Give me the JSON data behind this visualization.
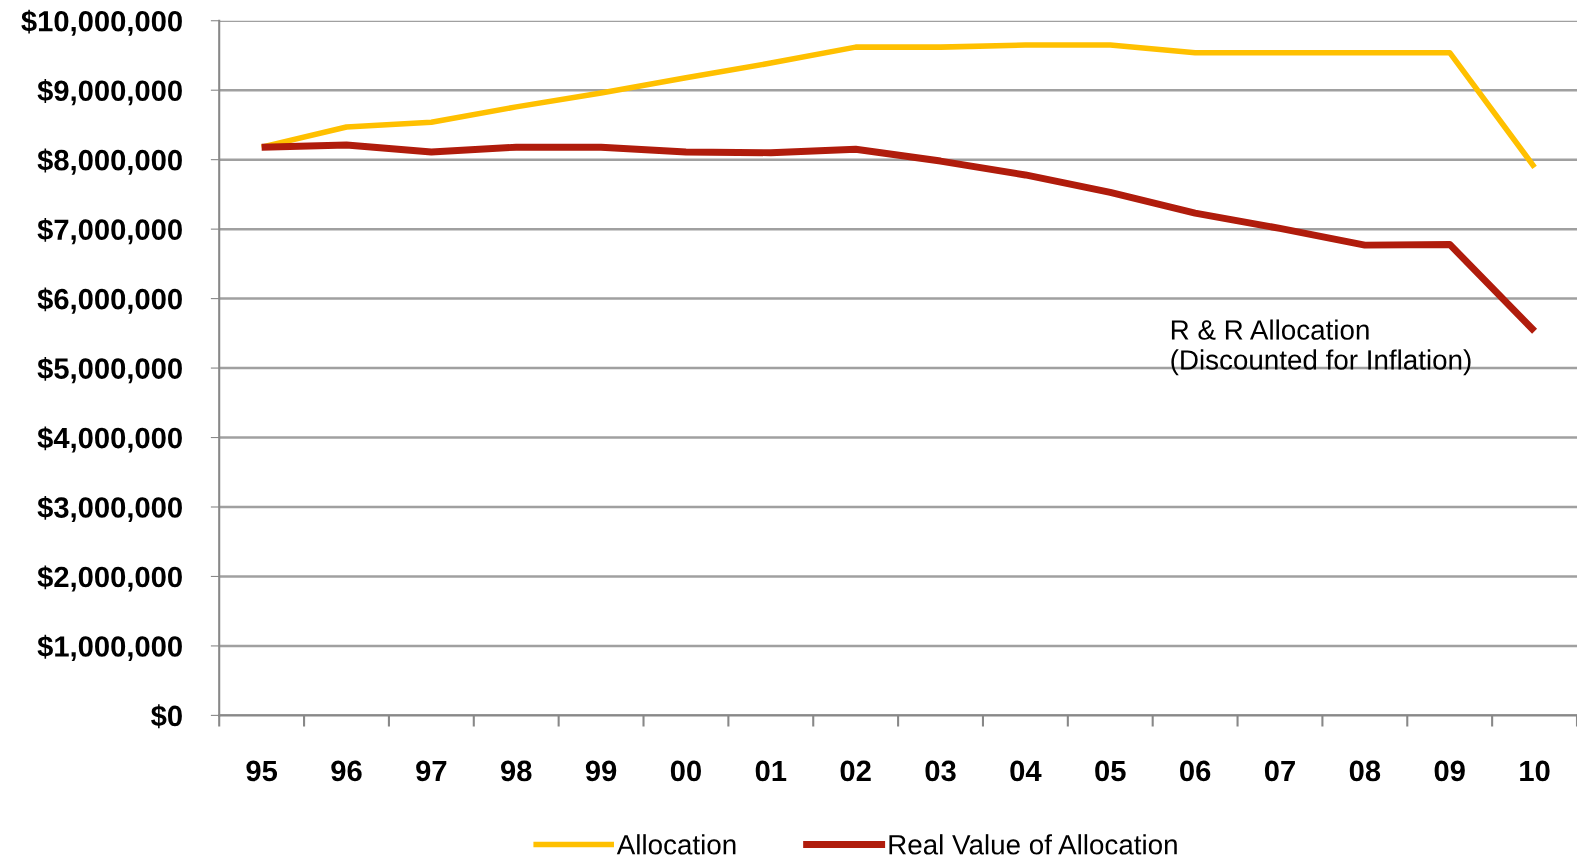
{
  "chart_data": {
    "type": "line",
    "categories": [
      "95",
      "96",
      "97",
      "98",
      "99",
      "00",
      "01",
      "02",
      "03",
      "04",
      "05",
      "06",
      "07",
      "08",
      "09",
      "10"
    ],
    "series": [
      {
        "name": "Allocation",
        "color": "#ffc000",
        "values": [
          8180000,
          8470000,
          8540000,
          8760000,
          8960000,
          9180000,
          9390000,
          9620000,
          9620000,
          9650000,
          9650000,
          9540000,
          9540000,
          9540000,
          9540000,
          7890000
        ]
      },
      {
        "name": "Real Value of Allocation",
        "color": "#b01c0c",
        "values": [
          8180000,
          8210000,
          8110000,
          8180000,
          8180000,
          8110000,
          8100000,
          8150000,
          7980000,
          7780000,
          7530000,
          7230000,
          7010000,
          6770000,
          6780000,
          5530000
        ]
      }
    ],
    "ylim": [
      0,
      10000000
    ],
    "yticks": [
      {
        "value": 0,
        "label": "$0"
      },
      {
        "value": 1000000,
        "label": "$1,000,000"
      },
      {
        "value": 2000000,
        "label": "$2,000,000"
      },
      {
        "value": 3000000,
        "label": "$3,000,000"
      },
      {
        "value": 4000000,
        "label": "$4,000,000"
      },
      {
        "value": 5000000,
        "label": "$5,000,000"
      },
      {
        "value": 6000000,
        "label": "$6,000,000"
      },
      {
        "value": 7000000,
        "label": "$7,000,000"
      },
      {
        "value": 8000000,
        "label": "$8,000,000"
      },
      {
        "value": 9000000,
        "label": "$9,000,000"
      },
      {
        "value": 10000000,
        "label": "$10,000,000"
      }
    ],
    "annotations": [
      "R & R Allocation\n(Discounted for Inflation)"
    ],
    "grid": "y",
    "legend": "bottom",
    "marker": "none",
    "line_style": "solid"
  }
}
